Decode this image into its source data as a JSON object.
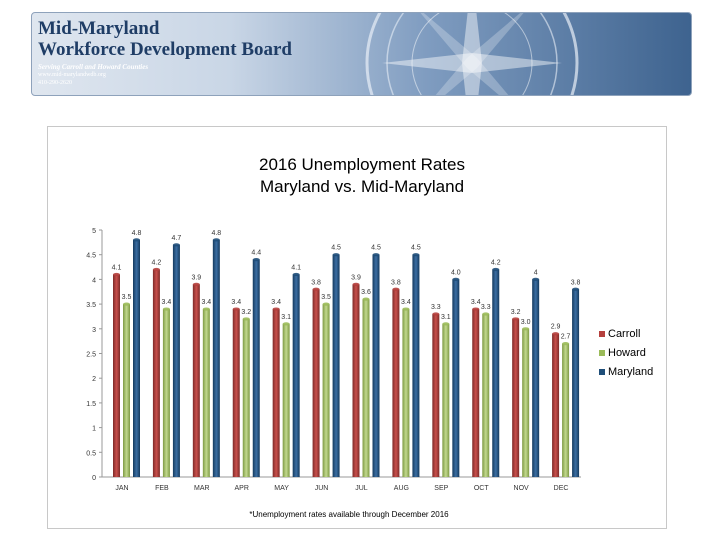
{
  "header": {
    "org_name_line1": "Mid-Maryland",
    "org_name_line2": "Workforce Development Board",
    "tagline": "Serving Carroll and Howard Counties",
    "url": "www.mid-marylandwdb.org",
    "phone": "410-290-2620"
  },
  "colors": {
    "carroll": "#b5403d",
    "howard": "#9bbb59",
    "maryland": "#1f4e79"
  },
  "chart_data": {
    "type": "bar",
    "title_line1": "2016 Unemployment Rates",
    "title_line2": "Maryland vs. Mid-Maryland",
    "categories": [
      "JAN",
      "FEB",
      "MAR",
      "APR",
      "MAY",
      "JUN",
      "JUL",
      "AUG",
      "SEP",
      "OCT",
      "NOV",
      "DEC"
    ],
    "series": [
      {
        "name": "Carroll",
        "values": [
          4.1,
          4.2,
          3.9,
          3.4,
          3.4,
          3.8,
          3.9,
          3.8,
          3.3,
          3.4,
          3.2,
          2.9
        ],
        "labels": [
          "4.1",
          "4.2",
          "3.9",
          "3.4",
          "3.4",
          "3.8",
          "3.9",
          "3.8",
          "3.3",
          "3.4",
          "3.2",
          "2.9"
        ]
      },
      {
        "name": "Howard",
        "values": [
          3.5,
          3.4,
          3.4,
          3.2,
          3.1,
          3.5,
          3.6,
          3.4,
          3.1,
          3.3,
          3.0,
          2.7
        ],
        "labels": [
          "3.5",
          "3.4",
          "3.4",
          "3.2",
          "3.1",
          "3.5",
          "3.6",
          "3.4",
          "3.1",
          "3.3",
          "3.0",
          "2.7"
        ]
      },
      {
        "name": "Maryland",
        "values": [
          4.8,
          4.7,
          4.8,
          4.4,
          4.1,
          4.5,
          4.5,
          4.5,
          4.0,
          4.2,
          4.0,
          3.8
        ],
        "labels": [
          "4.8",
          "4.7",
          "4.8",
          "4.4",
          "4.1",
          "4.5",
          "4.5",
          "4.5",
          "4.0",
          "4.2",
          "4",
          "3.8"
        ]
      }
    ],
    "yticks": [
      "0",
      "0.5",
      "1",
      "1.5",
      "2",
      "2.5",
      "3",
      "3.5",
      "4",
      "4.5",
      "5"
    ],
    "ylim": [
      0,
      5
    ],
    "legend_position": "right",
    "grid": false,
    "footnote": "*Unemployment rates available through December 2016"
  }
}
